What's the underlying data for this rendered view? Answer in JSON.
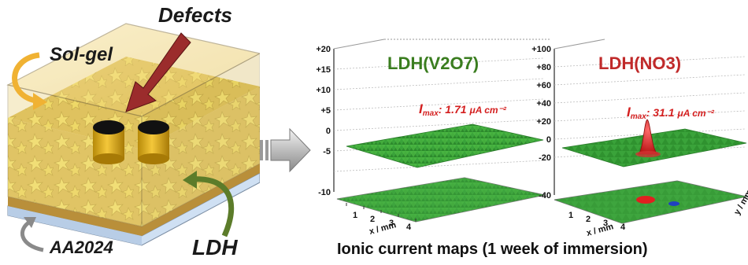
{
  "schematic": {
    "defects_label": "Defects",
    "solgel_label": "Sol-gel",
    "substrate_label": "AA2024",
    "ldh_label": "LDH"
  },
  "maps": [
    {
      "title": "LDH(V2O7)",
      "title_color": "#3a7d1f",
      "imax_prefix": "I",
      "imax_sub": "max",
      "imax_value": ": 1.71 ",
      "imax_unit": "μA cm⁻²",
      "z_ticks": [
        "+20",
        "+15",
        "+10",
        "+5",
        "0",
        "-5",
        "-10"
      ],
      "x_axis_label": "x / mm"
    },
    {
      "title": "LDH(NO3)",
      "title_color": "#c02a2a",
      "imax_prefix": "I",
      "imax_sub": "max",
      "imax_value": ": 31.1 ",
      "imax_unit": "μA cm⁻²",
      "z_ticks": [
        "+100",
        "+80",
        "+60",
        "+40",
        "+20",
        "0",
        "-20",
        "-40"
      ],
      "x_axis_label": "x / mm",
      "y_axis_label": "y / mm"
    }
  ],
  "caption": "Ionic current maps (1 week of immersion)",
  "colors": {
    "solgel": "#f3d98a",
    "ldh_crystals": "#f6e56a",
    "substrate": "#cfe0f3",
    "defect_arrow": "#9b2c2c",
    "solgel_arrow": "#f0b233",
    "ldh_arrow": "#5c7c2a",
    "substrate_arrow": "#8a8a8a",
    "surface_green": "#2e9a2e"
  }
}
